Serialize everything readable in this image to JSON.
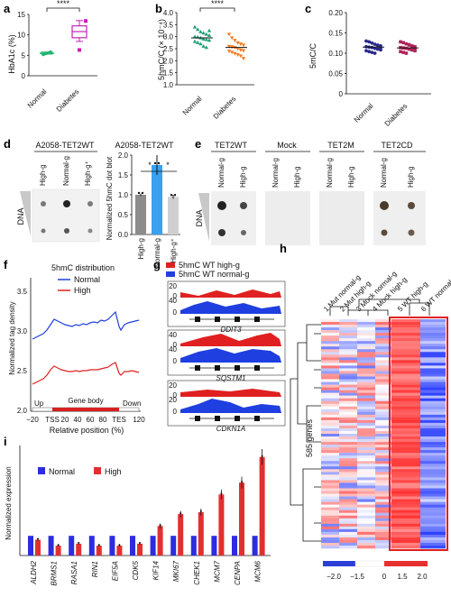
{
  "panel_a": {
    "letter": "a",
    "ylabel": "HbA1c (%)",
    "significance": "****",
    "chart_data": {
      "type": "box",
      "categories": [
        "Normal",
        "Diabetes"
      ],
      "ylim": [
        0,
        15
      ],
      "yticks": [
        "0",
        "5",
        "10",
        "15"
      ],
      "normal": {
        "median": 5.5,
        "q1": 5.3,
        "q3": 5.8,
        "min": 5.2,
        "max": 6.0,
        "points": [
          5.2,
          5.4,
          5.5,
          5.6,
          5.8
        ]
      },
      "diabetes": {
        "median": 10.8,
        "q1": 9.3,
        "q3": 12.2,
        "min": 8.4,
        "max": 13.5,
        "points": [
          13.4,
          12.5,
          10.8,
          8.6,
          8.3,
          6.3
        ]
      },
      "colors": {
        "normal": "#22b573",
        "diabetes": "#c71fb6"
      }
    }
  },
  "panel_b": {
    "letter": "b",
    "ylabel": "5hmC/C (× 10⁻⁴)",
    "significance": "****",
    "chart_data": {
      "type": "scatter",
      "categories": [
        "Normal",
        "Diabetes"
      ],
      "ylim": [
        1.0,
        4.0
      ],
      "yticks": [
        "1.0",
        "1.5",
        "2.0",
        "2.5",
        "3.0",
        "3.5",
        "4.0"
      ],
      "series": [
        {
          "name": "Normal",
          "mean": 2.95,
          "sd": 0.3,
          "values": [
            3.4,
            3.3,
            3.2,
            3.15,
            3.1,
            3.05,
            3.0,
            2.98,
            2.95,
            2.9,
            2.88,
            2.85,
            2.8,
            2.75,
            2.7,
            2.6,
            2.55,
            3.25
          ]
        },
        {
          "name": "Diabetes",
          "mean": 2.55,
          "sd": 0.25,
          "values": [
            3.1,
            2.95,
            2.85,
            2.75,
            2.7,
            2.65,
            2.6,
            2.58,
            2.55,
            2.5,
            2.45,
            2.42,
            2.4,
            2.35,
            2.3,
            2.25,
            2.2,
            2.1
          ]
        }
      ],
      "colors": {
        "normal": "#1f9e7a",
        "diabetes": "#f47a20"
      }
    }
  },
  "panel_c": {
    "letter": "c",
    "ylabel": "5mC/C",
    "chart_data": {
      "type": "scatter",
      "categories": [
        "Normal",
        "Diabetes"
      ],
      "ylim": [
        0.0,
        0.2
      ],
      "yticks": [
        "0",
        "0.05",
        "0.10",
        "0.15",
        "0.20"
      ],
      "series": [
        {
          "name": "Normal",
          "mean": 0.115,
          "values": [
            0.13,
            0.128,
            0.125,
            0.122,
            0.12,
            0.118,
            0.116,
            0.115,
            0.114,
            0.112,
            0.11,
            0.108,
            0.106,
            0.104,
            0.102,
            0.1,
            0.119,
            0.111
          ]
        },
        {
          "name": "Diabetes",
          "mean": 0.113,
          "values": [
            0.128,
            0.126,
            0.123,
            0.12,
            0.118,
            0.116,
            0.114,
            0.113,
            0.112,
            0.11,
            0.108,
            0.106,
            0.104,
            0.102,
            0.1,
            0.121,
            0.117,
            0.109
          ]
        }
      ],
      "colors": {
        "normal": "#2a2a8a",
        "diabetes": "#b0245a"
      }
    }
  },
  "panel_d": {
    "letter": "d",
    "blot_title": "A2058-TET2WT",
    "lanes": [
      "High-g",
      "Normal-g",
      "High-g⁺"
    ],
    "dna_label": "DNA",
    "bar_title": "A2058-TET2WT",
    "significance": [
      "*",
      "*"
    ],
    "chart_data": {
      "type": "bar",
      "ylabel": "Normalized 5hmC dot blot",
      "categories": [
        "High-g",
        "Normal-g",
        "High-g⁺"
      ],
      "values": [
        1.0,
        1.75,
        0.95
      ],
      "errors": [
        0.03,
        0.25,
        0.05
      ],
      "ylim": [
        0.0,
        2.0
      ],
      "yticks": [
        "0.0",
        "0.5",
        "1.0",
        "1.5",
        "2.0"
      ],
      "colors": [
        "#8c8c8c",
        "#3aa0f0",
        "#d0d0d0"
      ]
    }
  },
  "panel_e": {
    "letter": "e",
    "groups": [
      "TET2WT",
      "Mock",
      "TET2M",
      "TET2CD"
    ],
    "lanes": [
      "Normal-g",
      "High-g",
      "Normal-g",
      "High-g",
      "Normal-g",
      "High-g",
      "Normal-g",
      "High-g"
    ],
    "dna_label": "DNA"
  },
  "panel_f": {
    "letter": "f",
    "title": "5hmC distribution",
    "legend_normal": "Normal",
    "legend_high": "High",
    "ylabel": "Normalized tag density",
    "xlabel": "Relative position (%)",
    "gene_body_label": "Gene body",
    "up_label": "Up",
    "down_label": "Down",
    "yticks": [
      "2.0",
      "2.5",
      "3.0",
      "3.5"
    ],
    "xticks": [
      "−20",
      "TSS",
      "20",
      "40",
      "60",
      "80",
      "TES",
      "120"
    ],
    "colors": {
      "normal": "#1f3fe0",
      "high": "#e02020"
    }
  },
  "panel_g": {
    "letter": "g",
    "legend_high": "5hmC WT high-g",
    "legend_normal": "5hmC WT normal-g",
    "tracks": [
      {
        "gene": "DDIT3",
        "ticks": [
          "20",
          "0",
          "40",
          "0"
        ]
      },
      {
        "gene": "SQSTM1",
        "ticks": [
          "40",
          "0",
          "40",
          "0"
        ]
      },
      {
        "gene": "CDKN1A",
        "ticks": [
          "20",
          "0",
          "20",
          "0"
        ]
      }
    ]
  },
  "panel_h": {
    "letter": "h",
    "columns": [
      "1 Mut normal-g",
      "2 Mut high-g",
      "3 Mock normal-g",
      "4 Mock high-g",
      "5 WT high-g",
      "6 WT normal-g"
    ],
    "row_label": "585 genes",
    "scale_ticks": [
      "−2.0",
      "−1.5",
      "0",
      "1.5",
      "2.0"
    ],
    "colors": {
      "low": "#2b3fd6",
      "mid": "#ffffff",
      "high": "#e63030",
      "highlight": "#e02020"
    }
  },
  "panel_i": {
    "letter": "i",
    "ylabel": "Normalized expression",
    "legend_normal": "Normal",
    "legend_high": "High",
    "chart_data": {
      "type": "bar",
      "categories": [
        "ALDH2",
        "BRMS1",
        "RASA1",
        "RIN1",
        "EIF5A",
        "CDK5",
        "KIF14",
        "MKI67",
        "CHEK1",
        "MCM7",
        "CENPA",
        "MCM6"
      ],
      "series": [
        {
          "name": "Normal",
          "values": [
            1.0,
            1.0,
            1.0,
            1.0,
            1.0,
            1.0,
            1.0,
            1.0,
            1.0,
            1.0,
            1.0,
            1.0
          ]
        },
        {
          "name": "High",
          "values": [
            0.8,
            0.5,
            0.6,
            0.5,
            0.5,
            0.6,
            1.5,
            2.1,
            2.2,
            3.1,
            3.7,
            5.0
          ]
        }
      ],
      "ylim": [
        0,
        5.4
      ],
      "colors": {
        "normal": "#2c2ce0",
        "high": "#e23030"
      }
    }
  }
}
